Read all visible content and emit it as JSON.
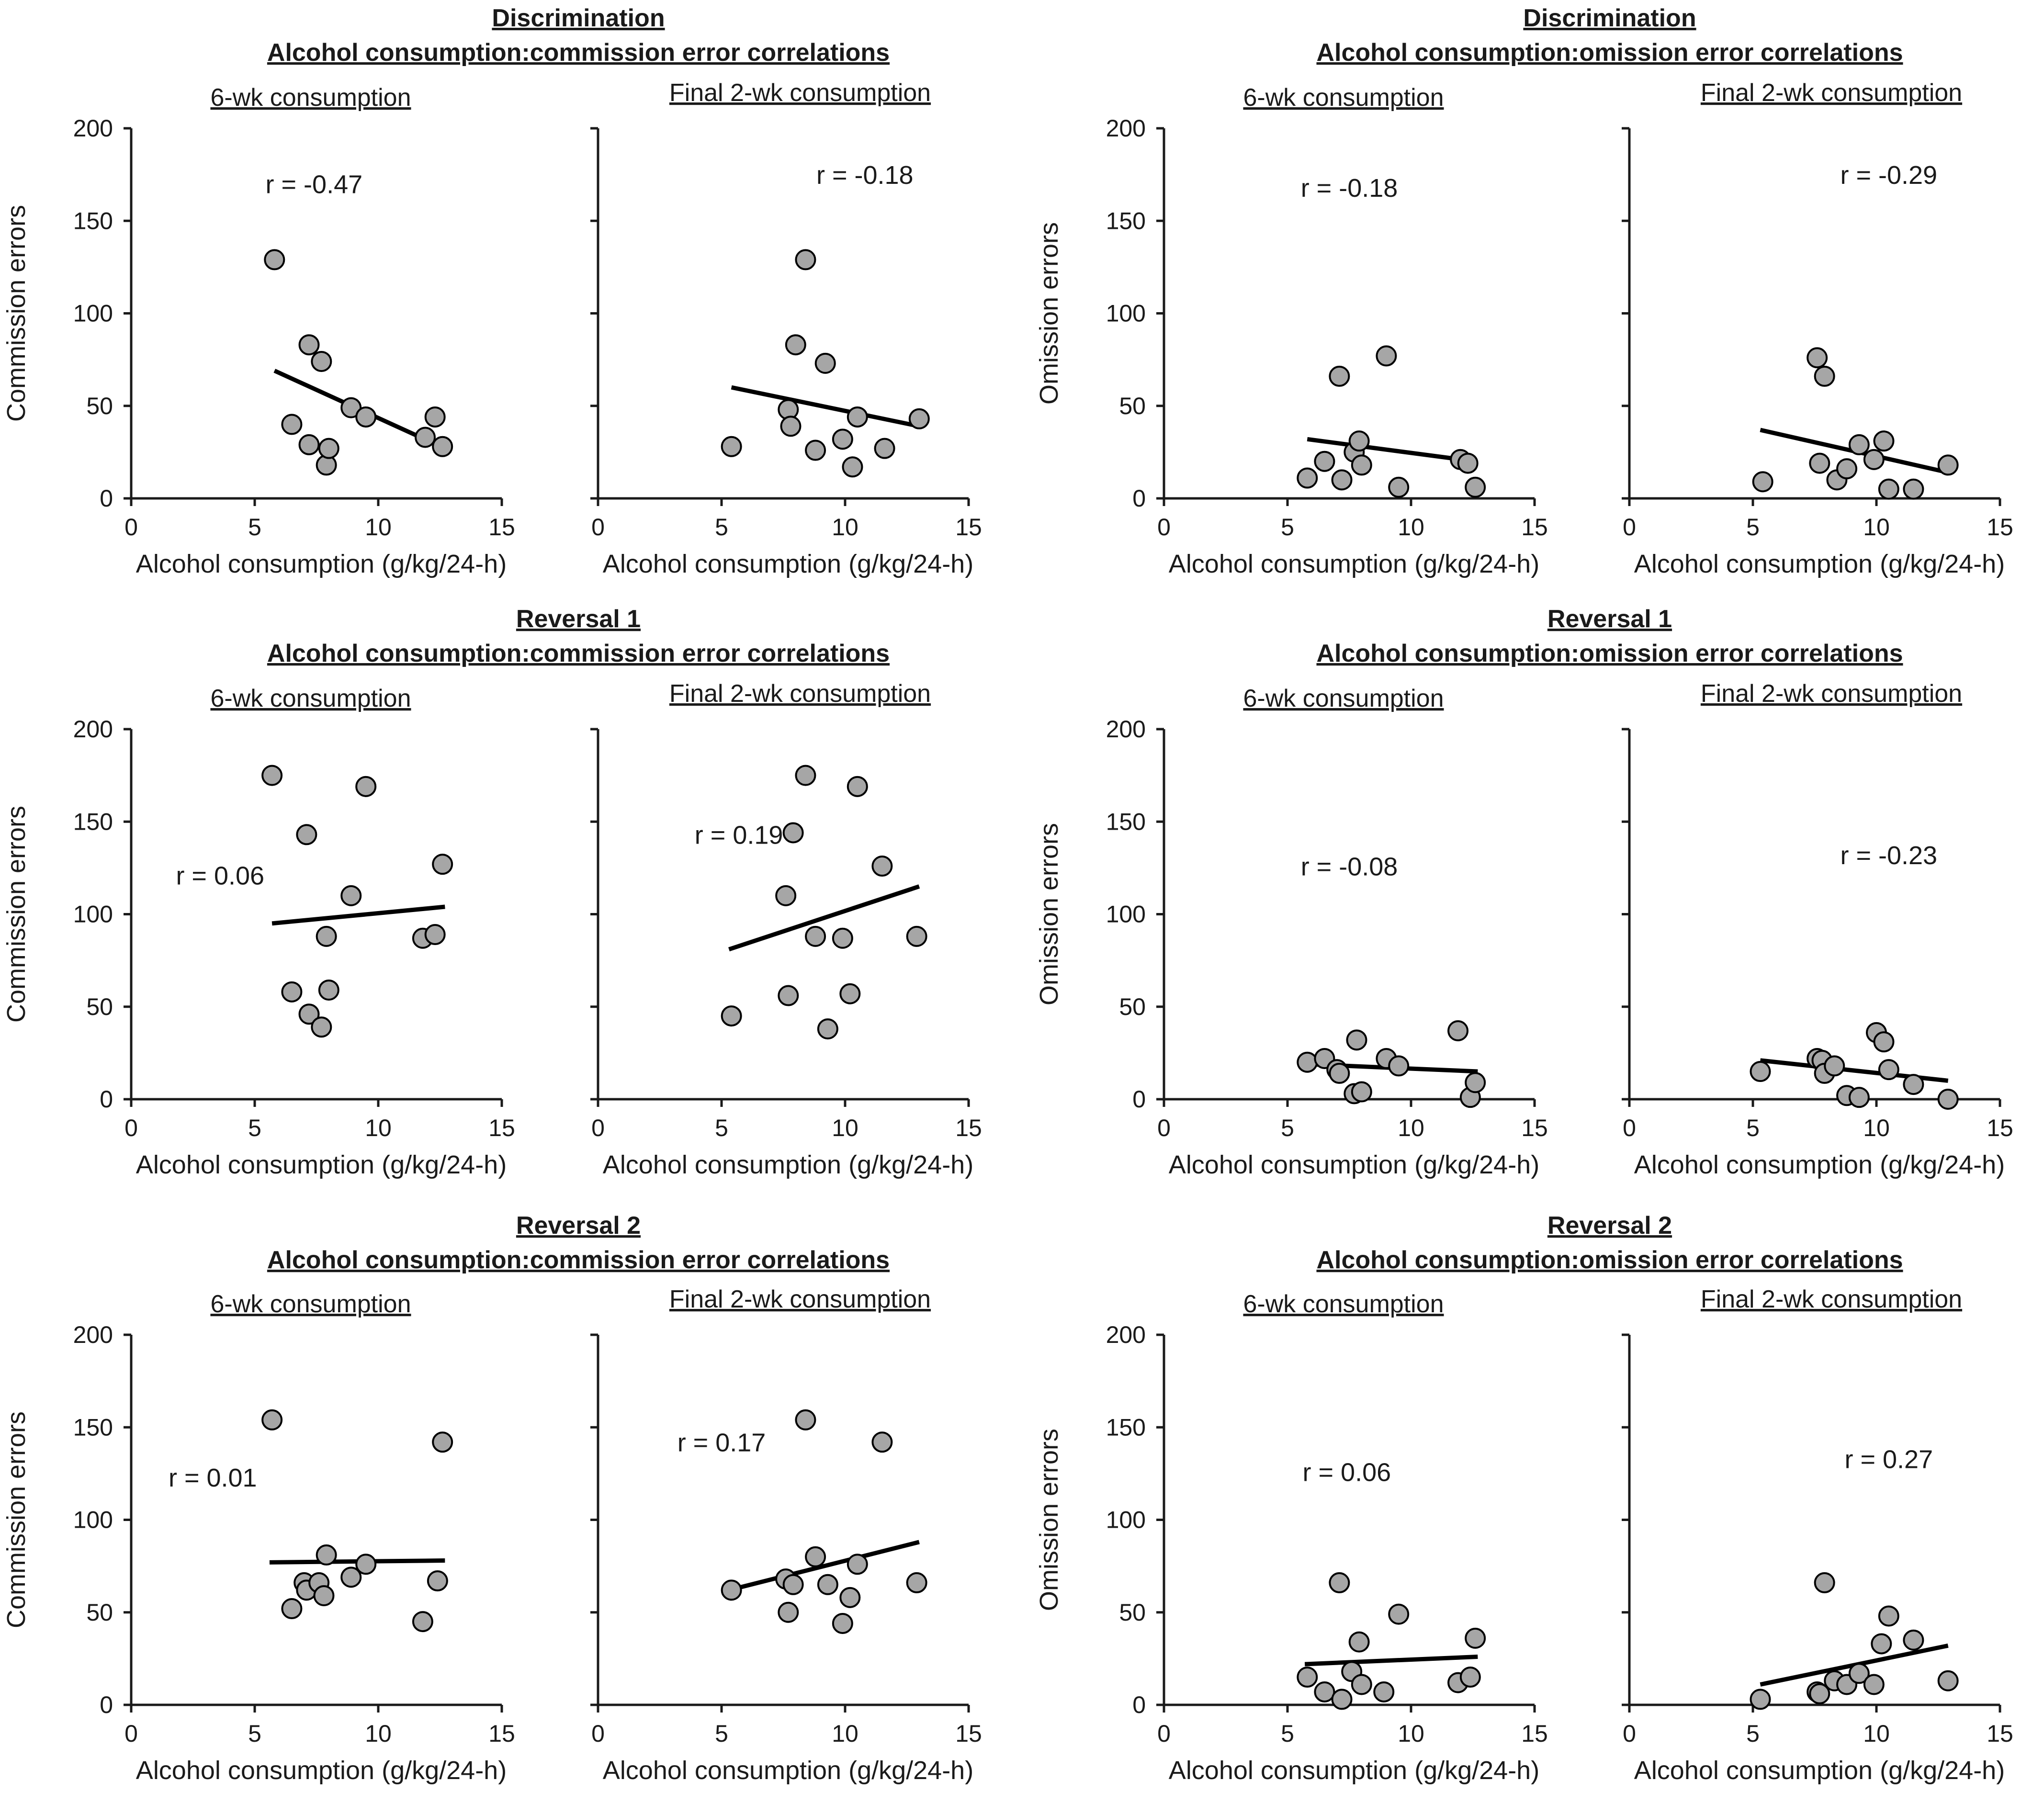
{
  "figure": {
    "x_tick_labels": [
      "0",
      "5",
      "10",
      "15"
    ],
    "y_tick_labels": [
      "0",
      "50",
      "100",
      "150",
      "200"
    ],
    "xlabel": "Alcohol consumption  (g/kg/24-h)",
    "sub_left": "6-wk consumption",
    "sub_right": "Final 2-wk consumption",
    "point_color": "#a6a6a6"
  },
  "chart_data": [
    {
      "type": "scatter",
      "phase": "Discrimination",
      "group_title": "Alcohol  consumption:commission  error correlations",
      "subtitle": "6-wk consumption",
      "ylabel": "Commission errors",
      "xlabel": "Alcohol consumption  (g/kg/24-h)",
      "xlim": [
        0,
        15
      ],
      "ylim": [
        0,
        200
      ],
      "r_label": "r = -0.47",
      "points": [
        [
          5.8,
          129
        ],
        [
          6.5,
          40
        ],
        [
          7.2,
          29
        ],
        [
          7.2,
          83
        ],
        [
          7.7,
          74
        ],
        [
          7.9,
          18
        ],
        [
          8.0,
          27
        ],
        [
          8.9,
          49
        ],
        [
          9.5,
          44
        ],
        [
          11.9,
          33
        ],
        [
          12.3,
          44
        ],
        [
          12.6,
          28
        ]
      ],
      "fit": [
        [
          5.8,
          69
        ],
        [
          12.7,
          27
        ]
      ]
    },
    {
      "type": "scatter",
      "phase": "Discrimination",
      "group_title": "Alcohol  consumption:commission  error correlations",
      "subtitle": "Final 2-wk consumption",
      "ylabel": "",
      "xlabel": "Alcohol consumption  (g/kg/24-h)",
      "xlim": [
        0,
        15
      ],
      "ylim": [
        0,
        200
      ],
      "r_label": "r = -0.18",
      "points": [
        [
          5.4,
          28
        ],
        [
          7.7,
          48
        ],
        [
          7.8,
          39
        ],
        [
          8.0,
          83
        ],
        [
          8.4,
          129
        ],
        [
          8.8,
          26
        ],
        [
          9.2,
          73
        ],
        [
          9.9,
          32
        ],
        [
          10.3,
          17
        ],
        [
          10.5,
          44
        ],
        [
          11.6,
          27
        ],
        [
          13.0,
          43
        ]
      ],
      "fit": [
        [
          5.4,
          60
        ],
        [
          13.0,
          39
        ]
      ]
    },
    {
      "type": "scatter",
      "phase": "Discrimination",
      "group_title": "Alcohol  consumption:omission  error correlations",
      "subtitle": "6-wk consumption",
      "ylabel": "Omission errors",
      "xlabel": "Alcohol consumption  (g/kg/24-h)",
      "xlim": [
        0,
        15
      ],
      "ylim": [
        0,
        200
      ],
      "r_label": "r = -0.18",
      "points": [
        [
          5.8,
          11
        ],
        [
          6.5,
          20
        ],
        [
          7.1,
          66
        ],
        [
          7.2,
          10
        ],
        [
          7.7,
          25
        ],
        [
          7.9,
          31
        ],
        [
          8.0,
          18
        ],
        [
          9.0,
          77
        ],
        [
          9.5,
          6
        ],
        [
          12.0,
          21
        ],
        [
          12.3,
          19
        ],
        [
          12.6,
          6
        ]
      ],
      "fit": [
        [
          5.8,
          32
        ],
        [
          12.6,
          20
        ]
      ]
    },
    {
      "type": "scatter",
      "phase": "Discrimination",
      "group_title": "Alcohol  consumption:omission  error correlations",
      "subtitle": "Final 2-wk consumption",
      "ylabel": "",
      "xlabel": "Alcohol consumption  (g/kg/24-h)",
      "xlim": [
        0,
        15
      ],
      "ylim": [
        0,
        200
      ],
      "r_label": "r = -0.29",
      "points": [
        [
          5.4,
          9
        ],
        [
          7.6,
          76
        ],
        [
          7.7,
          19
        ],
        [
          7.9,
          66
        ],
        [
          8.4,
          10
        ],
        [
          8.8,
          16
        ],
        [
          9.3,
          29
        ],
        [
          9.9,
          21
        ],
        [
          10.3,
          31
        ],
        [
          10.5,
          5
        ],
        [
          11.5,
          5
        ],
        [
          12.9,
          18
        ]
      ],
      "fit": [
        [
          5.3,
          37
        ],
        [
          12.9,
          14
        ]
      ]
    },
    {
      "type": "scatter",
      "phase": "Reversal 1",
      "group_title": "Alcohol  consumption:commission  error correlations",
      "subtitle": "6-wk consumption",
      "ylabel": "Commission errors",
      "xlabel": "Alcohol consumption  (g/kg/24-h)",
      "xlim": [
        0,
        15
      ],
      "ylim": [
        0,
        200
      ],
      "r_label": "r = 0.06",
      "points": [
        [
          5.7,
          175
        ],
        [
          6.5,
          58
        ],
        [
          7.1,
          143
        ],
        [
          7.2,
          46
        ],
        [
          7.7,
          39
        ],
        [
          7.9,
          88
        ],
        [
          8.0,
          59
        ],
        [
          8.9,
          110
        ],
        [
          9.5,
          169
        ],
        [
          11.8,
          87
        ],
        [
          12.3,
          89
        ],
        [
          12.6,
          127
        ]
      ],
      "fit": [
        [
          5.7,
          95
        ],
        [
          12.7,
          104
        ]
      ]
    },
    {
      "type": "scatter",
      "phase": "Reversal 1",
      "group_title": "Alcohol  consumption:commission  error correlations",
      "subtitle": "Final 2-wk consumption",
      "ylabel": "",
      "xlabel": "Alcohol consumption  (g/kg/24-h)",
      "xlim": [
        0,
        15
      ],
      "ylim": [
        0,
        200
      ],
      "r_label": "r = 0.19",
      "points": [
        [
          5.4,
          45
        ],
        [
          7.6,
          110
        ],
        [
          7.7,
          56
        ],
        [
          7.9,
          144
        ],
        [
          8.4,
          175
        ],
        [
          8.8,
          88
        ],
        [
          9.3,
          38
        ],
        [
          9.9,
          87
        ],
        [
          10.2,
          57
        ],
        [
          10.5,
          169
        ],
        [
          11.5,
          126
        ],
        [
          12.9,
          88
        ]
      ],
      "fit": [
        [
          5.3,
          81
        ],
        [
          13.0,
          115
        ]
      ]
    },
    {
      "type": "scatter",
      "phase": "Reversal 1",
      "group_title": "Alcohol  consumption:omission  error correlations",
      "subtitle": "6-wk consumption",
      "ylabel": "Omission errors",
      "xlabel": "Alcohol consumption  (g/kg/24-h)",
      "xlim": [
        0,
        15
      ],
      "ylim": [
        0,
        200
      ],
      "r_label": "r = -0.08",
      "points": [
        [
          5.8,
          20
        ],
        [
          6.5,
          22
        ],
        [
          7.0,
          16
        ],
        [
          7.1,
          14
        ],
        [
          7.7,
          3
        ],
        [
          7.8,
          32
        ],
        [
          8.0,
          4
        ],
        [
          9.0,
          22
        ],
        [
          9.5,
          18
        ],
        [
          11.9,
          37
        ],
        [
          12.4,
          1
        ],
        [
          12.6,
          9
        ]
      ],
      "fit": [
        [
          5.7,
          19
        ],
        [
          12.7,
          15
        ]
      ]
    },
    {
      "type": "scatter",
      "phase": "Reversal 1",
      "group_title": "Alcohol  consumption:omission  error correlations",
      "subtitle": "Final 2-wk consumption",
      "ylabel": "",
      "xlabel": "Alcohol consumption  (g/kg/24-h)",
      "xlim": [
        0,
        15
      ],
      "ylim": [
        0,
        200
      ],
      "r_label": "r = -0.23",
      "points": [
        [
          5.3,
          15
        ],
        [
          7.6,
          22
        ],
        [
          7.8,
          21
        ],
        [
          7.9,
          14
        ],
        [
          8.3,
          18
        ],
        [
          8.8,
          2
        ],
        [
          9.3,
          1
        ],
        [
          10.0,
          36
        ],
        [
          10.3,
          31
        ],
        [
          10.5,
          16
        ],
        [
          11.5,
          8
        ],
        [
          12.9,
          0
        ]
      ],
      "fit": [
        [
          5.3,
          21
        ],
        [
          12.9,
          10
        ]
      ]
    },
    {
      "type": "scatter",
      "phase": "Reversal 2",
      "group_title": "Alcohol  consumption:commission  error correlations",
      "subtitle": "6-wk consumption",
      "ylabel": "Commission errors",
      "xlabel": "Alcohol consumption  (g/kg/24-h)",
      "xlim": [
        0,
        15
      ],
      "ylim": [
        0,
        200
      ],
      "r_label": "r = 0.01",
      "points": [
        [
          5.7,
          154
        ],
        [
          6.5,
          52
        ],
        [
          7.0,
          66
        ],
        [
          7.1,
          62
        ],
        [
          7.6,
          66
        ],
        [
          7.8,
          59
        ],
        [
          7.9,
          81
        ],
        [
          8.9,
          69
        ],
        [
          9.5,
          76
        ],
        [
          11.8,
          45
        ],
        [
          12.4,
          67
        ],
        [
          12.6,
          142
        ]
      ],
      "fit": [
        [
          5.6,
          77
        ],
        [
          12.7,
          78
        ]
      ]
    },
    {
      "type": "scatter",
      "phase": "Reversal 2",
      "group_title": "Alcohol  consumption:commission  error correlations",
      "subtitle": "Final 2-wk consumption",
      "ylabel": "",
      "xlabel": "Alcohol consumption  (g/kg/24-h)",
      "xlim": [
        0,
        15
      ],
      "ylim": [
        0,
        200
      ],
      "r_label": "r = 0.17",
      "points": [
        [
          5.4,
          62
        ],
        [
          7.6,
          68
        ],
        [
          7.7,
          50
        ],
        [
          7.9,
          65
        ],
        [
          8.4,
          154
        ],
        [
          8.8,
          80
        ],
        [
          9.3,
          65
        ],
        [
          9.9,
          44
        ],
        [
          10.2,
          58
        ],
        [
          10.5,
          76
        ],
        [
          11.5,
          142
        ],
        [
          12.9,
          66
        ]
      ],
      "fit": [
        [
          5.3,
          62
        ],
        [
          13.0,
          88
        ]
      ]
    },
    {
      "type": "scatter",
      "phase": "Reversal 2",
      "group_title": "Alcohol  consumption:omission  error correlations",
      "subtitle": "6-wk consumption",
      "ylabel": "Omission errors",
      "xlabel": "Alcohol consumption  (g/kg/24-h)",
      "xlim": [
        0,
        15
      ],
      "ylim": [
        0,
        200
      ],
      "r_label": "r = 0.06",
      "points": [
        [
          5.8,
          15
        ],
        [
          6.5,
          7
        ],
        [
          7.1,
          66
        ],
        [
          7.2,
          3
        ],
        [
          7.6,
          18
        ],
        [
          7.9,
          34
        ],
        [
          8.0,
          11
        ],
        [
          8.9,
          7
        ],
        [
          9.5,
          49
        ],
        [
          11.9,
          12
        ],
        [
          12.4,
          15
        ],
        [
          12.6,
          36
        ]
      ],
      "fit": [
        [
          5.7,
          22
        ],
        [
          12.7,
          26
        ]
      ]
    },
    {
      "type": "scatter",
      "phase": "Reversal 2",
      "group_title": "Alcohol  consumption:omission  error correlations",
      "subtitle": "Final 2-wk consumption",
      "ylabel": "",
      "xlabel": "Alcohol consumption  (g/kg/24-h)",
      "xlim": [
        0,
        15
      ],
      "ylim": [
        0,
        200
      ],
      "r_label": "r = 0.27",
      "points": [
        [
          5.3,
          3
        ],
        [
          7.6,
          7
        ],
        [
          7.7,
          6
        ],
        [
          7.9,
          66
        ],
        [
          8.3,
          13
        ],
        [
          8.8,
          11
        ],
        [
          9.3,
          17
        ],
        [
          9.9,
          11
        ],
        [
          10.2,
          33
        ],
        [
          10.5,
          48
        ],
        [
          11.5,
          35
        ],
        [
          12.9,
          13
        ]
      ],
      "fit": [
        [
          5.3,
          11
        ],
        [
          12.9,
          32
        ]
      ]
    }
  ]
}
